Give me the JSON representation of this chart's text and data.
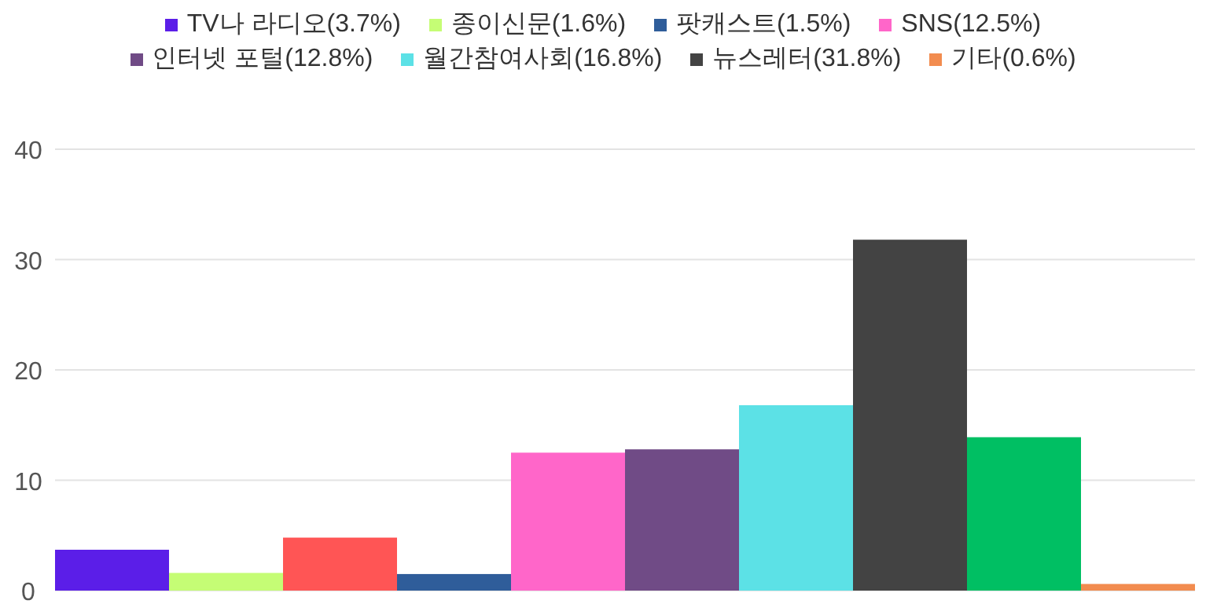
{
  "chart_data": {
    "type": "bar",
    "categories": [
      null
    ],
    "series": [
      {
        "name": "TV나 라디오(3.7%)",
        "color": "#5b1ee8",
        "values": [
          3.7
        ]
      },
      {
        "name": "종이신문(1.6%)",
        "color": "#c5fd75",
        "values": [
          1.6
        ]
      },
      {
        "color": "#ff5555",
        "values": [
          4.8
        ]
      },
      {
        "name": "팟캐스트(1.5%)",
        "color": "#2f5d9a",
        "values": [
          1.5
        ]
      },
      {
        "name": "SNS(12.5%)",
        "color": "#ff66c9",
        "values": [
          12.5
        ]
      },
      {
        "name": "인터넷 포털(12.8%)",
        "color": "#704b86",
        "values": [
          12.8
        ]
      },
      {
        "name": "월간참여사회(16.8%)",
        "color": "#5ce1e6",
        "values": [
          16.8
        ]
      },
      {
        "name": "뉴스레터(31.8%)",
        "color": "#434343",
        "values": [
          31.8
        ]
      },
      {
        "color": "#00bf63",
        "values": [
          13.9
        ]
      },
      {
        "name": "기타(0.6%)",
        "color": "#f28c4f",
        "values": [
          0.6
        ]
      }
    ],
    "ylim": [
      0,
      40
    ],
    "yticks": [
      0,
      10,
      20,
      30,
      40
    ],
    "grid": "y",
    "legend": "top"
  }
}
